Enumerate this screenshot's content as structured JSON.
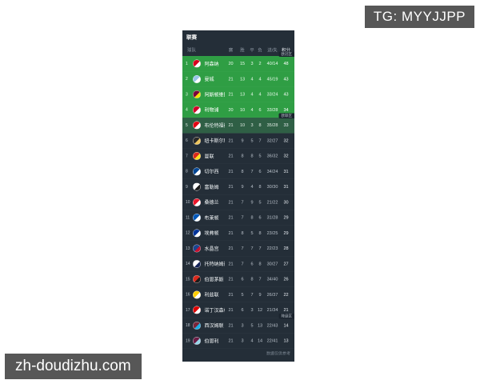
{
  "overlays": {
    "tg_badge": "TG: MYYJJPP",
    "site_badge": "zh-doudizhu.com"
  },
  "league_table": {
    "title": "联赛",
    "columns": {
      "team": "球队",
      "played": "赛",
      "win": "胜",
      "draw": "平",
      "loss": "负",
      "goals": "进/失",
      "points": "积分"
    },
    "footer_note": "数据仅供参考",
    "zone_colors": {
      "champions": "#2f9e44",
      "europa": "#2f5f45",
      "normal": "#242e38"
    },
    "rows": [
      {
        "rank": 1,
        "team": "阿森纳",
        "played": 20,
        "win": 15,
        "draw": 3,
        "loss": 2,
        "goals": "40/14",
        "points": 48,
        "zone": "champions",
        "tag": "欧冠区",
        "crest": [
          "#d6001c",
          "#ffffff"
        ]
      },
      {
        "rank": 2,
        "team": "曼城",
        "played": 21,
        "win": 13,
        "draw": 4,
        "loss": 4,
        "goals": "45/19",
        "points": 43,
        "zone": "champions",
        "tag": "",
        "crest": [
          "#99c5e7",
          "#ffffff"
        ]
      },
      {
        "rank": 3,
        "team": "阿斯顿维拉",
        "played": 21,
        "win": 13,
        "draw": 4,
        "loss": 4,
        "goals": "33/24",
        "points": 43,
        "zone": "champions",
        "tag": "",
        "crest": [
          "#7a003c",
          "#f6e500"
        ]
      },
      {
        "rank": 4,
        "team": "利物浦",
        "played": 20,
        "win": 10,
        "draw": 4,
        "loss": 6,
        "goals": "33/28",
        "points": 34,
        "zone": "champions",
        "tag": "",
        "crest": [
          "#d00027",
          "#ffffff"
        ]
      },
      {
        "rank": 5,
        "team": "布伦特福德",
        "played": 21,
        "win": 10,
        "draw": 3,
        "loss": 8,
        "goals": "35/28",
        "points": 33,
        "zone": "europa",
        "tag": "欧联区",
        "crest": [
          "#e30613",
          "#ffffff"
        ]
      },
      {
        "rank": 6,
        "team": "纽卡斯尔联",
        "played": 21,
        "win": 9,
        "draw": 5,
        "loss": 7,
        "goals": "32/27",
        "points": 32,
        "zone": "normal",
        "tag": "",
        "crest": [
          "#2b2b2b",
          "#f0c75e"
        ]
      },
      {
        "rank": 7,
        "team": "曼联",
        "played": 21,
        "win": 8,
        "draw": 8,
        "loss": 5,
        "goals": "36/32",
        "points": 32,
        "zone": "normal",
        "tag": "",
        "crest": [
          "#da291c",
          "#fbe122"
        ]
      },
      {
        "rank": 8,
        "team": "切尔西",
        "played": 21,
        "win": 8,
        "draw": 7,
        "loss": 6,
        "goals": "34/24",
        "points": 31,
        "zone": "normal",
        "tag": "",
        "crest": [
          "#034694",
          "#ffffff"
        ]
      },
      {
        "rank": 9,
        "team": "富勒姆",
        "played": 21,
        "win": 9,
        "draw": 4,
        "loss": 8,
        "goals": "30/30",
        "points": 31,
        "zone": "normal",
        "tag": "",
        "crest": [
          "#ffffff",
          "#1b1b1b"
        ]
      },
      {
        "rank": 10,
        "team": "桑德兰",
        "played": 21,
        "win": 7,
        "draw": 9,
        "loss": 5,
        "goals": "21/22",
        "points": 30,
        "zone": "normal",
        "tag": "",
        "crest": [
          "#eb172b",
          "#ffffff"
        ]
      },
      {
        "rank": 11,
        "team": "布莱顿",
        "played": 21,
        "win": 7,
        "draw": 8,
        "loss": 6,
        "goals": "31/28",
        "points": 29,
        "zone": "normal",
        "tag": "",
        "crest": [
          "#0057b8",
          "#ffffff"
        ]
      },
      {
        "rank": 12,
        "team": "埃弗顿",
        "played": 21,
        "win": 8,
        "draw": 5,
        "loss": 8,
        "goals": "23/25",
        "points": 29,
        "zone": "normal",
        "tag": "",
        "crest": [
          "#003399",
          "#ffffff"
        ]
      },
      {
        "rank": 13,
        "team": "水晶宫",
        "played": 21,
        "win": 7,
        "draw": 7,
        "loss": 7,
        "goals": "22/23",
        "points": 28,
        "zone": "normal",
        "tag": "",
        "crest": [
          "#1b458f",
          "#c4122e"
        ]
      },
      {
        "rank": 14,
        "team": "托特纳姆热刺",
        "played": 21,
        "win": 7,
        "draw": 6,
        "loss": 8,
        "goals": "30/27",
        "points": 27,
        "zone": "normal",
        "tag": "",
        "crest": [
          "#ffffff",
          "#132257"
        ]
      },
      {
        "rank": 15,
        "team": "伯恩茅斯",
        "played": 21,
        "win": 6,
        "draw": 8,
        "loss": 7,
        "goals": "34/40",
        "points": 26,
        "zone": "normal",
        "tag": "",
        "crest": [
          "#da291c",
          "#1b1b1b"
        ]
      },
      {
        "rank": 16,
        "team": "利兹联",
        "played": 21,
        "win": 5,
        "draw": 7,
        "loss": 9,
        "goals": "26/37",
        "points": 22,
        "zone": "normal",
        "tag": "",
        "crest": [
          "#ffcd00",
          "#ffffff"
        ]
      },
      {
        "rank": 17,
        "team": "诺丁汉森林",
        "played": 21,
        "win": 6,
        "draw": 3,
        "loss": 12,
        "goals": "21/34",
        "points": 21,
        "zone": "normal",
        "tag": "",
        "crest": [
          "#dd0000",
          "#ffffff"
        ]
      },
      {
        "rank": 18,
        "team": "西汉姆联",
        "played": 21,
        "win": 3,
        "draw": 5,
        "loss": 13,
        "goals": "22/43",
        "points": 14,
        "zone": "normal",
        "tag": "降级区",
        "crest": [
          "#7a263a",
          "#1bb1e7"
        ]
      },
      {
        "rank": 19,
        "team": "伯恩利",
        "played": 21,
        "win": 3,
        "draw": 4,
        "loss": 14,
        "goals": "22/41",
        "points": 13,
        "zone": "normal",
        "tag": "",
        "crest": [
          "#6c1d45",
          "#99d6ea"
        ]
      }
    ]
  }
}
